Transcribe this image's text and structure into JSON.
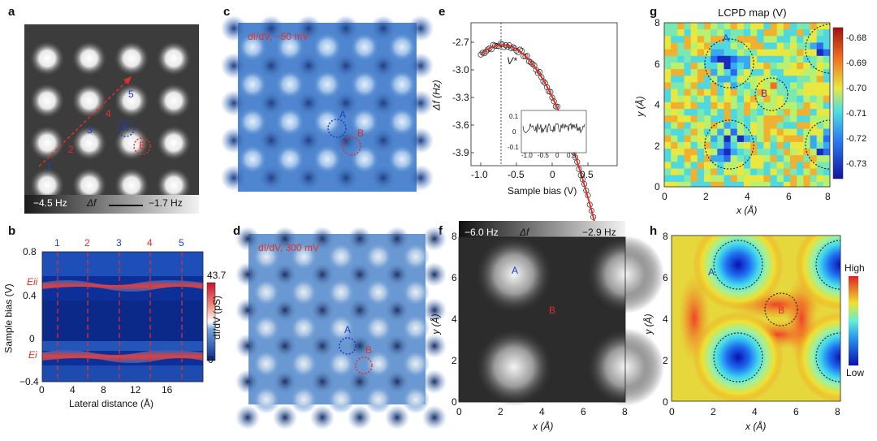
{
  "panel_letters": [
    "a",
    "b",
    "c",
    "d",
    "e",
    "f",
    "g",
    "h"
  ],
  "panel_a": {
    "point_labels": [
      "1",
      "2",
      "3",
      "4",
      "5"
    ],
    "site_a": "A",
    "site_b": "B",
    "scale_min": "−4.5 Hz",
    "scale_symbol": "Δf",
    "scale_max": "−1.7 Hz"
  },
  "panel_b": {
    "line_labels": [
      "1",
      "2",
      "3",
      "4",
      "5"
    ],
    "y_ticks": [
      "0.8",
      "0.4",
      "0",
      "−0.4"
    ],
    "x_ticks": [
      "0",
      "4",
      "8",
      "12",
      "16"
    ],
    "y_label": "Sample bias (V)",
    "x_label": "Lateral distance (Å)",
    "e_upper": "Eii",
    "e_lower": "Ei",
    "cbar_max": "43.7",
    "cbar_min": "0",
    "cbar_label": "dI/dV (pS)"
  },
  "panel_c": {
    "label": "dI/dV, −50 mV",
    "site_a": "A",
    "site_b": "B"
  },
  "panel_d": {
    "label": "dI/dV, 300 mV",
    "site_a": "A",
    "site_b": "B"
  },
  "panel_e": {
    "y_ticks": [
      "-2.7",
      "-3.0",
      "-3.3",
      "-3.6",
      "-3.9"
    ],
    "x_ticks": [
      "-1.0",
      "-0.5",
      "0",
      "0.5"
    ],
    "y_label": "Δf (Hz)",
    "x_label": "Sample bias (V)",
    "vstar": "V*",
    "inset_y_ticks": [
      "0.1",
      "0",
      "-0.1"
    ],
    "inset_x_ticks": [
      "-1.0",
      "-0.5",
      "0",
      "0.5"
    ]
  },
  "panel_f": {
    "scale_min": "−6.0 Hz",
    "scale_symbol": "Δf",
    "scale_max": "−2.9 Hz",
    "site_a": "A",
    "site_b": "B",
    "x_ticks": [
      "0",
      "2",
      "4",
      "6",
      "8"
    ],
    "y_ticks": [
      "0",
      "2",
      "4",
      "6",
      "8"
    ],
    "x_label": "x (Å)",
    "y_label": "y (Å)"
  },
  "panel_g": {
    "title": "LCPD map (V)",
    "site_a": "A",
    "site_b": "B",
    "x_ticks": [
      "0",
      "2",
      "4",
      "6",
      "8"
    ],
    "y_ticks": [
      "0",
      "2",
      "4",
      "6",
      "8"
    ],
    "x_label": "x (Å)",
    "y_label": "y (Å)",
    "cbar_ticks": [
      "-0.68",
      "-0.69",
      "-0.70",
      "-0.71",
      "-0.72",
      "-0.73"
    ]
  },
  "panel_h": {
    "site_a": "A",
    "site_b": "B",
    "x_ticks": [
      "0",
      "2",
      "4",
      "6",
      "8"
    ],
    "y_ticks": [
      "0",
      "2",
      "4",
      "6",
      "8"
    ],
    "x_label": "x (Å)",
    "y_label": "y (Å)",
    "cbar_high": "High",
    "cbar_low": "Low"
  },
  "colors": {
    "red": "#e0302a",
    "blue": "#1d3fc8"
  }
}
